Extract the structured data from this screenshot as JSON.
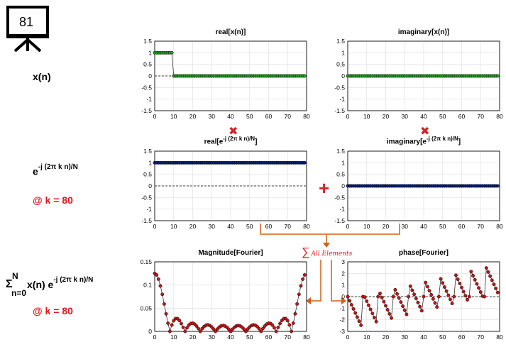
{
  "slide_number": "81",
  "labels": {
    "xn": "x(n)",
    "basis_base": "e",
    "basis_exp": "-j (2π k n)/N",
    "k_value": "@ k = 80",
    "sum_sigma": "Σ",
    "sum_upper": "N",
    "sum_lower": "n=0",
    "sum_body": "x(n) e",
    "sum_exp": "-j (2π k n)/N",
    "k_value2": "@ k = 80",
    "all_elements": "All Elements",
    "sum_glyph": "∑"
  },
  "operators": {
    "multiply": "✖",
    "plus": "+"
  },
  "colors": {
    "green": "#1fa01f",
    "navy": "#0b1e7a",
    "red_marker": "#c81414",
    "orange_arrow": "#d35f10",
    "red_text": "#e8141c"
  },
  "chart_data": [
    {
      "id": "real-xn",
      "type": "line",
      "title": "real[x(n)]",
      "xlim": [
        0,
        80
      ],
      "ylim": [
        -1.5,
        1.5
      ],
      "xticks": [
        0,
        10,
        20,
        30,
        40,
        50,
        60,
        70,
        80
      ],
      "yticks": [
        -1.5,
        -1,
        -0.5,
        0,
        0.5,
        1,
        1.5
      ],
      "grid": true,
      "marker_color": "#1fa01f",
      "n": 80,
      "values_rule": "1 for n = 0..9, 0 for n = 10..79"
    },
    {
      "id": "imag-xn",
      "type": "line",
      "title": "imaginary[x(n)]",
      "xlim": [
        0,
        80
      ],
      "ylim": [
        -1.5,
        1.5
      ],
      "xticks": [
        0,
        10,
        20,
        30,
        40,
        50,
        60,
        70,
        80
      ],
      "yticks": [
        -1.5,
        -1,
        -0.5,
        0,
        0.5,
        1,
        1.5
      ],
      "grid": true,
      "marker_color": "#1fa01f",
      "n": 80,
      "values_rule": "0 for all n"
    },
    {
      "id": "real-basis",
      "type": "line",
      "title_base": "real[e",
      "title_exp": "-j (2π k n)/N",
      "title_end": "]",
      "xlim": [
        0,
        80
      ],
      "ylim": [
        -1.5,
        1.5
      ],
      "xticks": [
        0,
        10,
        20,
        30,
        40,
        50,
        60,
        70,
        80
      ],
      "yticks": [
        -1.5,
        -1,
        -0.5,
        0,
        0.5,
        1,
        1.5
      ],
      "grid": true,
      "marker_color": "#0b1e7a",
      "n": 80,
      "values_rule": "1 for all n"
    },
    {
      "id": "imag-basis",
      "type": "line",
      "title_base": "imaginary[e",
      "title_exp": "-j (2π k n)/N",
      "title_end": "]",
      "xlim": [
        0,
        80
      ],
      "ylim": [
        -1.5,
        1.5
      ],
      "xticks": [
        0,
        10,
        20,
        30,
        40,
        50,
        60,
        70,
        80
      ],
      "yticks": [
        -1.5,
        -1,
        -0.5,
        0,
        0.5,
        1,
        1.5
      ],
      "grid": true,
      "marker_color": "#0b1e7a",
      "n": 80,
      "values_rule": "0 for all n"
    },
    {
      "id": "magnitude",
      "type": "line",
      "title": "Magnitude[Fourier]",
      "xlim": [
        0,
        80
      ],
      "ylim": [
        0,
        0.15
      ],
      "xticks": [
        0,
        10,
        20,
        30,
        40,
        50,
        60,
        70,
        80
      ],
      "yticks": [
        0,
        0.05,
        0.1,
        0.15
      ],
      "grid": true,
      "marker_color": "#c81414",
      "n": 80,
      "values_rule": "|X(k)| of a length-10 rectangular pulse over N = 80 (normalized by N)"
    },
    {
      "id": "phase",
      "type": "line",
      "title": "phase[Fourier]",
      "xlim": [
        0,
        80
      ],
      "ylim": [
        -3,
        3
      ],
      "xticks": [
        0,
        10,
        20,
        30,
        40,
        50,
        60,
        70,
        80
      ],
      "yticks": [
        -3,
        -2,
        -1,
        0,
        1,
        2,
        3
      ],
      "grid": true,
      "marker_color": "#c81414",
      "n": 80,
      "values_rule": "angle(X(k)) of a length-10 rectangular pulse over N = 80"
    }
  ]
}
